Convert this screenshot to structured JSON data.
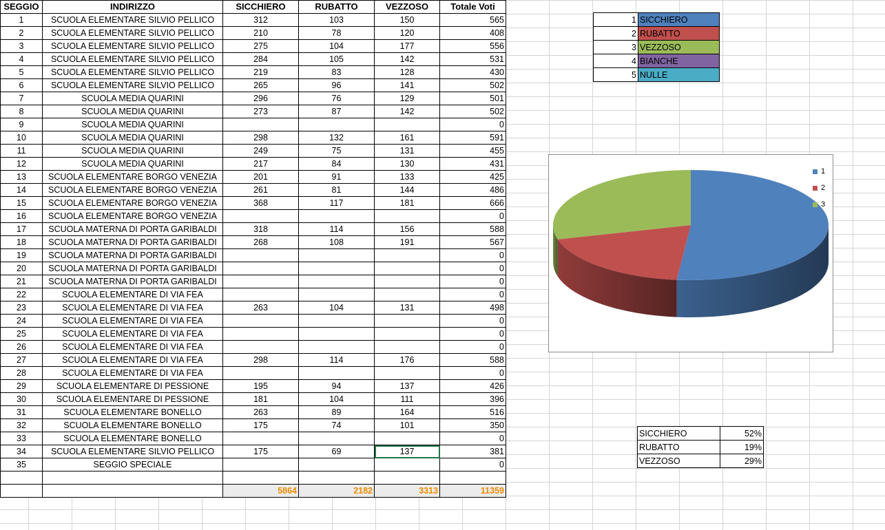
{
  "table": {
    "headers": [
      "SEGGIO",
      "INDIRIZZO",
      "SICCHIERO",
      "RUBATTO",
      "VEZZOSO",
      "Totale Voti"
    ],
    "rows": [
      [
        "1",
        "SCUOLA ELEMENTARE SILVIO PELLICO",
        "312",
        "103",
        "150",
        "565"
      ],
      [
        "2",
        "SCUOLA ELEMENTARE SILVIO PELLICO",
        "210",
        "78",
        "120",
        "408"
      ],
      [
        "3",
        "SCUOLA ELEMENTARE SILVIO PELLICO",
        "275",
        "104",
        "177",
        "556"
      ],
      [
        "4",
        "SCUOLA ELEMENTARE SILVIO PELLICO",
        "284",
        "105",
        "142",
        "531"
      ],
      [
        "5",
        "SCUOLA ELEMENTARE SILVIO PELLICO",
        "219",
        "83",
        "128",
        "430"
      ],
      [
        "6",
        "SCUOLA ELEMENTARE SILVIO PELLICO",
        "265",
        "96",
        "141",
        "502"
      ],
      [
        "7",
        "SCUOLA MEDIA QUARINI",
        "296",
        "76",
        "129",
        "501"
      ],
      [
        "8",
        "SCUOLA MEDIA QUARINI",
        "273",
        "87",
        "142",
        "502"
      ],
      [
        "9",
        "SCUOLA MEDIA QUARINI",
        "",
        "",
        "",
        "0"
      ],
      [
        "10",
        "SCUOLA MEDIA QUARINI",
        "298",
        "132",
        "161",
        "591"
      ],
      [
        "11",
        "SCUOLA MEDIA QUARINI",
        "249",
        "75",
        "131",
        "455"
      ],
      [
        "12",
        "SCUOLA MEDIA QUARINI",
        "217",
        "84",
        "130",
        "431"
      ],
      [
        "13",
        "SCUOLA ELEMENTARE BORGO VENEZIA",
        "201",
        "91",
        "133",
        "425"
      ],
      [
        "14",
        "SCUOLA ELEMENTARE BORGO VENEZIA",
        "261",
        "81",
        "144",
        "486"
      ],
      [
        "15",
        "SCUOLA ELEMENTARE BORGO VENEZIA",
        "368",
        "117",
        "181",
        "666"
      ],
      [
        "16",
        "SCUOLA ELEMENTARE BORGO VENEZIA",
        "",
        "",
        "",
        "0"
      ],
      [
        "17",
        "SCUOLA MATERNA DI PORTA GARIBALDI",
        "318",
        "114",
        "156",
        "588"
      ],
      [
        "18",
        "SCUOLA MATERNA DI PORTA GARIBALDI",
        "268",
        "108",
        "191",
        "567"
      ],
      [
        "19",
        "SCUOLA MATERNA DI PORTA GARIBALDI",
        "",
        "",
        "",
        "0"
      ],
      [
        "20",
        "SCUOLA MATERNA DI PORTA GARIBALDI",
        "",
        "",
        "",
        "0"
      ],
      [
        "21",
        "SCUOLA MATERNA DI PORTA GARIBALDI",
        "",
        "",
        "",
        "0"
      ],
      [
        "22",
        "SCUOLA ELEMENTARE DI VIA FEA",
        "",
        "",
        "",
        "0"
      ],
      [
        "23",
        "SCUOLA ELEMENTARE DI VIA FEA",
        "263",
        "104",
        "131",
        "498"
      ],
      [
        "24",
        "SCUOLA ELEMENTARE DI VIA FEA",
        "",
        "",
        "",
        "0"
      ],
      [
        "25",
        "SCUOLA ELEMENTARE DI VIA FEA",
        "",
        "",
        "",
        "0"
      ],
      [
        "26",
        "SCUOLA ELEMENTARE DI VIA FEA",
        "",
        "",
        "",
        "0"
      ],
      [
        "27",
        "SCUOLA ELEMENTARE DI VIA FEA",
        "298",
        "114",
        "176",
        "588"
      ],
      [
        "28",
        "SCUOLA ELEMENTARE DI VIA FEA",
        "",
        "",
        "",
        "0"
      ],
      [
        "29",
        "SCUOLA ELEMENTARE DI PESSIONE",
        "195",
        "94",
        "137",
        "426"
      ],
      [
        "30",
        "SCUOLA ELEMENTARE DI PESSIONE",
        "181",
        "104",
        "111",
        "396"
      ],
      [
        "31",
        "SCUOLA ELEMENTARE BONELLO",
        "263",
        "89",
        "164",
        "516"
      ],
      [
        "32",
        "SCUOLA ELEMENTARE BONELLO",
        "175",
        "74",
        "101",
        "350"
      ],
      [
        "33",
        "SCUOLA ELEMENTARE BONELLO",
        "",
        "",
        "",
        "0"
      ],
      [
        "34",
        "SCUOLA ELEMENTARE SILVIO PELLICO",
        "175",
        "69",
        "137",
        "381"
      ],
      [
        "35",
        "SEGGIO SPECIALE",
        "",
        "",
        "",
        "0"
      ]
    ],
    "totals": [
      "5864",
      "2182",
      "3313",
      "11359"
    ]
  },
  "legend": [
    {
      "num": "1",
      "name": "SICCHIERO",
      "color": "#4f81bd"
    },
    {
      "num": "2",
      "name": "RUBATTO",
      "color": "#c0504d"
    },
    {
      "num": "3",
      "name": "VEZZOSO",
      "color": "#9bbb59"
    },
    {
      "num": "4",
      "name": "BIANCHE",
      "color": "#8064a2"
    },
    {
      "num": "5",
      "name": "NULLE",
      "color": "#4bacc6"
    }
  ],
  "percentages": [
    {
      "name": "SICCHIERO",
      "pct": "52%"
    },
    {
      "name": "RUBATTO",
      "pct": "19%"
    },
    {
      "name": "VEZZOSO",
      "pct": "29%"
    }
  ],
  "chart_data": {
    "type": "pie",
    "categories": [
      "1",
      "2",
      "3"
    ],
    "values": [
      5864,
      2182,
      3313
    ],
    "colors": [
      "#4f81bd",
      "#c0504d",
      "#9bbb59"
    ],
    "legend_position": "top-right",
    "style": "3d"
  }
}
